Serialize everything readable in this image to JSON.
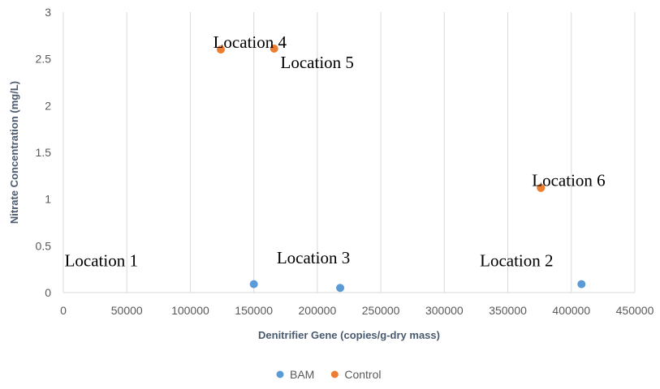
{
  "chart_data": {
    "type": "scatter",
    "xlabel": "Denitrifier  Gene (copies/g-dry mass)",
    "ylabel": "Nitrate Concentration (mg/L)",
    "xlim": [
      0,
      450000
    ],
    "ylim": [
      0,
      3
    ],
    "x_ticks": [
      "0",
      "50000",
      "100000",
      "150000",
      "200000",
      "250000",
      "300000",
      "350000",
      "400000",
      "450000"
    ],
    "y_ticks": [
      "0",
      "0.5",
      "1",
      "1.5",
      "2",
      "2.5",
      "3"
    ],
    "grid": "vertical",
    "legend_position": "bottom",
    "series": [
      {
        "name": "BAM",
        "color": "#5b9bd5",
        "points": [
          {
            "x": 150000,
            "y": 0.09
          },
          {
            "x": 218000,
            "y": 0.05
          },
          {
            "x": 408000,
            "y": 0.09
          }
        ]
      },
      {
        "name": "Control",
        "color": "#ed7d31",
        "points": [
          {
            "x": 124000,
            "y": 2.6
          },
          {
            "x": 166000,
            "y": 2.61
          },
          {
            "x": 376000,
            "y": 1.12
          }
        ]
      }
    ],
    "annotations": [
      {
        "text": "Location 1",
        "x": 1000,
        "y": 0.28
      },
      {
        "text": "Location 3",
        "x": 168000,
        "y": 0.31
      },
      {
        "text": "Location 2",
        "x": 328000,
        "y": 0.28
      },
      {
        "text": "Location 4",
        "x": 118000,
        "y": 2.62
      },
      {
        "text": "Location 5",
        "x": 171000,
        "y": 2.4
      },
      {
        "text": "Location 6",
        "x": 369000,
        "y": 1.14
      }
    ]
  }
}
